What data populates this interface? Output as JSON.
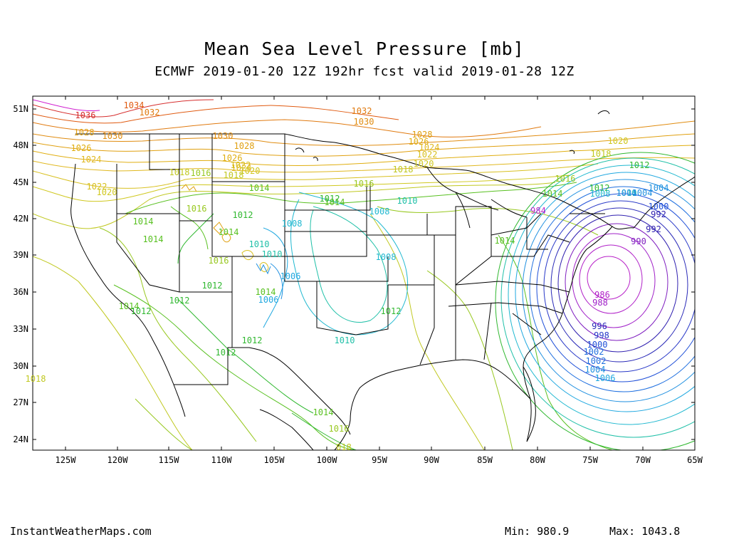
{
  "title": "Mean Sea Level Pressure [mb]",
  "subtitle": "ECMWF 2019-01-20 12Z 192hr fcst valid 2019-01-28 12Z",
  "footer": {
    "site": "InstantWeatherMaps.com",
    "min_label": "Min:",
    "min_value": "980.9",
    "max_label": "Max:",
    "max_value": "1043.8"
  },
  "lat_ticks": [
    "51N",
    "48N",
    "45N",
    "42N",
    "39N",
    "36N",
    "33N",
    "30N",
    "27N",
    "24N"
  ],
  "lon_ticks": [
    "125W",
    "120W",
    "115W",
    "110W",
    "105W",
    "100W",
    "95W",
    "90W",
    "85W",
    "80W",
    "75W",
    "70W",
    "65W"
  ],
  "isobar_labels": [
    {
      "text": "1036",
      "color": "#d62e2e"
    },
    {
      "text": "1034",
      "color": "#e05a10"
    },
    {
      "text": "1032",
      "color": "#e07a10"
    },
    {
      "text": "1032",
      "color": "#e07a10"
    },
    {
      "text": "1030",
      "color": "#e08c10"
    },
    {
      "text": "1030",
      "color": "#e08c10"
    },
    {
      "text": "1030",
      "color": "#e08c10"
    },
    {
      "text": "1028",
      "color": "#e0a010"
    },
    {
      "text": "1028",
      "color": "#e0a010"
    },
    {
      "text": "1028",
      "color": "#e0a010"
    },
    {
      "text": "1026",
      "color": "#e0ae10"
    },
    {
      "text": "1026",
      "color": "#e0ae10"
    },
    {
      "text": "1026",
      "color": "#e0ae10"
    },
    {
      "text": "1024",
      "color": "#e0b820"
    },
    {
      "text": "1024",
      "color": "#e0b820"
    },
    {
      "text": "1024",
      "color": "#e0b820"
    },
    {
      "text": "1022",
      "color": "#d8c020"
    },
    {
      "text": "1022",
      "color": "#d8c020"
    },
    {
      "text": "1022",
      "color": "#d8c020"
    },
    {
      "text": "1020",
      "color": "#d0c820"
    },
    {
      "text": "1020",
      "color": "#d0c820"
    },
    {
      "text": "1020",
      "color": "#d0c820"
    },
    {
      "text": "1020",
      "color": "#d0c820"
    },
    {
      "text": "1018",
      "color": "#c0c820"
    },
    {
      "text": "1018",
      "color": "#c0c820"
    },
    {
      "text": "1018",
      "color": "#c0c820"
    },
    {
      "text": "1018",
      "color": "#c0c820"
    },
    {
      "text": "018",
      "color": "#c0c820"
    },
    {
      "text": "1018",
      "color": "#c0c820"
    },
    {
      "text": "1016",
      "color": "#98c820"
    },
    {
      "text": "1016",
      "color": "#98c820"
    },
    {
      "text": "1016",
      "color": "#98c820"
    },
    {
      "text": "1016",
      "color": "#98c820"
    },
    {
      "text": "1016",
      "color": "#98c820"
    },
    {
      "text": "1016",
      "color": "#98c820"
    },
    {
      "text": "1014",
      "color": "#58c020"
    },
    {
      "text": "1014",
      "color": "#58c020"
    },
    {
      "text": "1014",
      "color": "#58c020"
    },
    {
      "text": "1014",
      "color": "#58c020"
    },
    {
      "text": "1014",
      "color": "#58c020"
    },
    {
      "text": "1014",
      "color": "#58c020"
    },
    {
      "text": "1014",
      "color": "#58c020"
    },
    {
      "text": "1014",
      "color": "#58c020"
    },
    {
      "text": "1014",
      "color": "#58c020"
    },
    {
      "text": "1014",
      "color": "#58c020"
    },
    {
      "text": "1012",
      "color": "#30b830"
    },
    {
      "text": "1012",
      "color": "#30b830"
    },
    {
      "text": "1012",
      "color": "#30b830"
    },
    {
      "text": "1012",
      "color": "#30b830"
    },
    {
      "text": "1012",
      "color": "#30b830"
    },
    {
      "text": "1012",
      "color": "#30b830"
    },
    {
      "text": "1012",
      "color": "#30b830"
    },
    {
      "text": "1012",
      "color": "#30b830"
    },
    {
      "text": "1012",
      "color": "#30b830"
    },
    {
      "text": "1012",
      "color": "#30b830"
    },
    {
      "text": "1010",
      "color": "#20c0a8"
    },
    {
      "text": "1010",
      "color": "#20c0a8"
    },
    {
      "text": "1010",
      "color": "#20c0a8"
    },
    {
      "text": "1010",
      "color": "#20c0a8"
    },
    {
      "text": "1010",
      "color": "#20c0a8"
    },
    {
      "text": "1008",
      "color": "#20b8d0"
    },
    {
      "text": "1008",
      "color": "#20b8d0"
    },
    {
      "text": "1008",
      "color": "#20b8d0"
    },
    {
      "text": "1008",
      "color": "#20b8d0"
    },
    {
      "text": "1006",
      "color": "#20a8e0"
    },
    {
      "text": "1006",
      "color": "#20a8e0"
    },
    {
      "text": "1006",
      "color": "#20a8e0"
    },
    {
      "text": "1004",
      "color": "#2090e0"
    },
    {
      "text": "1004",
      "color": "#2090e0"
    },
    {
      "text": "1004",
      "color": "#2090e0"
    },
    {
      "text": "1004",
      "color": "#2090e0"
    },
    {
      "text": "1002",
      "color": "#2070e0"
    },
    {
      "text": "1002",
      "color": "#2070e0"
    },
    {
      "text": "1000",
      "color": "#2050d8"
    },
    {
      "text": "1000",
      "color": "#2050d8"
    },
    {
      "text": "998",
      "color": "#2838c8"
    },
    {
      "text": "996",
      "color": "#2a2ab8"
    },
    {
      "text": "992",
      "color": "#3020b0"
    },
    {
      "text": "992",
      "color": "#3020b0"
    },
    {
      "text": "990",
      "color": "#8020c0"
    },
    {
      "text": "988",
      "color": "#a020c8"
    },
    {
      "text": "986",
      "color": "#b020c8"
    },
    {
      "text": "984",
      "color": "#b820c8"
    }
  ],
  "colors": {
    "magenta": "#d020d0",
    "red": "#d62e2e",
    "orange": "#e08c10",
    "yellow": "#c0c820",
    "lime": "#58c020",
    "green": "#30b830",
    "cyan": "#20b8d0",
    "blue": "#2070e0",
    "navy": "#2a2ab8",
    "purple": "#a020c8"
  }
}
